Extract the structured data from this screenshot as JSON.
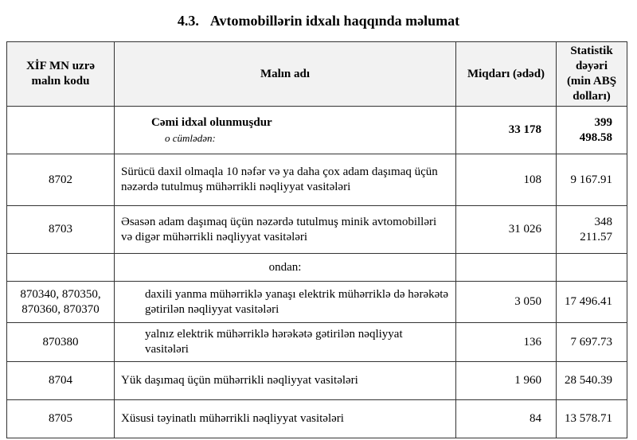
{
  "title": {
    "number": "4.3.",
    "text": "Avtomobillərin idxalı haqqında məlumat"
  },
  "headers": [
    "XİF MN uzrə malın kodu",
    "Malın adı",
    "Miqdarı (ədəd)",
    "Statistik dəyəri (min ABŞ dolları)"
  ],
  "total": {
    "label": "Cəmi idxal olunmuşdur",
    "note": "o cümlədən:",
    "qty": "33 178",
    "value": "399 498.58"
  },
  "rows": [
    {
      "code": "8702",
      "name": "Sürücü daxil olmaqla 10 nəfər və ya daha çox adam daşımaq üçün nəzərdə tutulmuş mühərrikli nəqliyyat vasitələri",
      "qty": "108",
      "value": "9 167.91"
    },
    {
      "code": "8703",
      "name": "Əsasən adam daşımaq üçün nəzərdə tutulmuş minik avtomobilləri və digər mühərrikli nəqliyyat vasitələri",
      "qty": "31 026",
      "value": "348 211.57"
    }
  ],
  "ondan": "ondan:",
  "subrows": [
    {
      "code": "870340, 870350, 870360, 870370",
      "name": "daxili yanma mühərriklə yanaşı elektrik mühərriklə də hərəkətə gətirilən nəqliyyat vasitələri",
      "qty": "3 050",
      "value": "17 496.41"
    },
    {
      "code": "870380",
      "name": "yalnız elektrik mühərriklə hərəkətə gətirilən nəqliyyat vasitələri",
      "qty": "136",
      "value": "7 697.73"
    }
  ],
  "rows2": [
    {
      "code": "8704",
      "name": "Yük daşımaq üçün mühərrikli nəqliyyat vasitələri",
      "qty": "1 960",
      "value": "28 540.39"
    },
    {
      "code": "8705",
      "name": "Xüsusi təyinatlı mühərrikli nəqliyyat vasitələri",
      "qty": "84",
      "value": "13 578.71"
    }
  ]
}
